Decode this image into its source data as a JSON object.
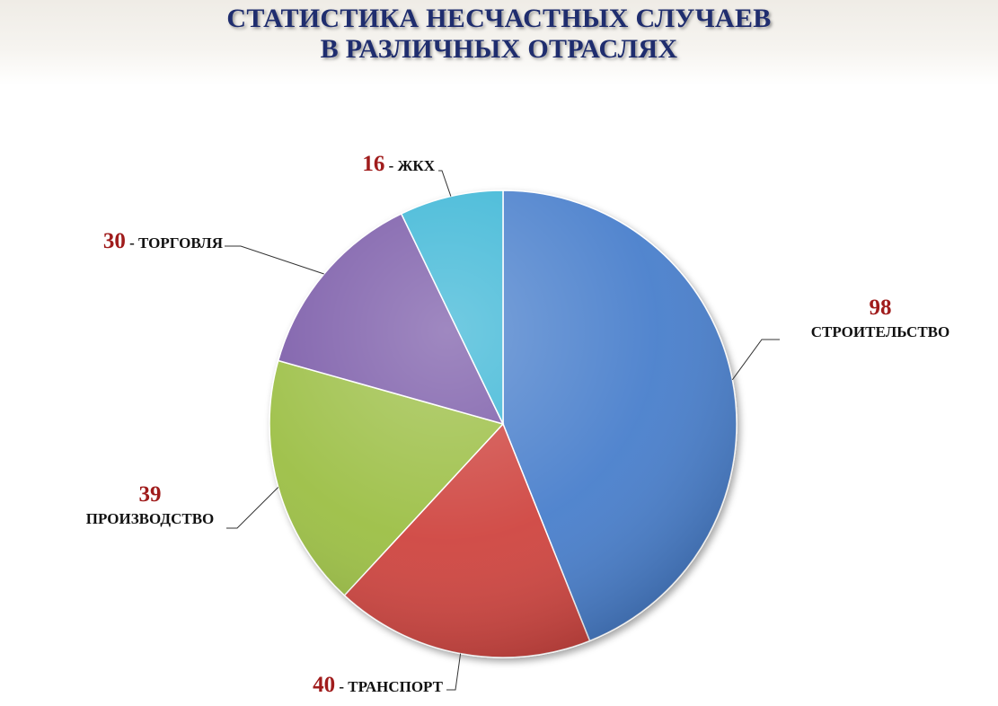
{
  "title": {
    "line1": "СТАТИСТИКА НЕСЧАСТНЫХ СЛУЧАЕВ",
    "line2": "В РАЗЛИЧНЫХ ОТРАСЛЯХ"
  },
  "chart_data": {
    "type": "pie",
    "title": "СТАТИСТИКА НЕСЧАСТНЫХ СЛУЧАЕВ В РАЗЛИЧНЫХ ОТРАСЛЯХ",
    "categories": [
      "СТРОИТЕЛЬСТВО",
      "ТРАНСПОРТ",
      "ПРОИЗВОДСТВО",
      "ТОРГОВЛЯ",
      "ЖКХ"
    ],
    "values": [
      98,
      40,
      39,
      30,
      16
    ],
    "colors": [
      "#4a7fcc",
      "#cf4440",
      "#9cbf45",
      "#7a5aa8",
      "#3bb6d6"
    ],
    "value_labels": [
      "98",
      "40",
      "39",
      "30",
      "16"
    ],
    "label_separators": [
      "",
      " - ",
      "",
      " - ",
      " - "
    ],
    "legend": "none"
  }
}
